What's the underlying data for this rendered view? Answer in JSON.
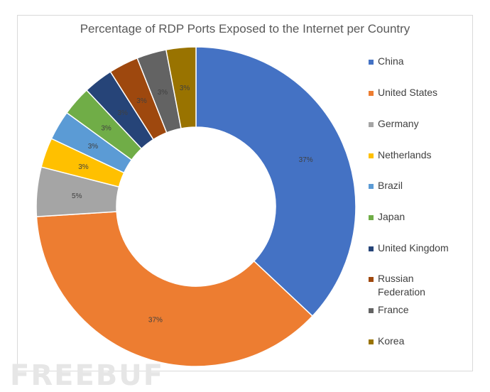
{
  "chart_data": {
    "type": "pie",
    "title": "Percentage of RDP Ports Exposed to the Internet per Country",
    "legend_position": "right",
    "categories": [
      "China",
      "United States",
      "Germany",
      "Netherlands",
      "Brazil",
      "Japan",
      "United Kingdom",
      "Russian Federation",
      "France",
      "Korea"
    ],
    "values": [
      37,
      37,
      5,
      3,
      3,
      3,
      3,
      3,
      3,
      3
    ],
    "labels": [
      "37%",
      "37%",
      "5%",
      "3%",
      "3%",
      "3%",
      "3%",
      "3%",
      "3%",
      "3%"
    ],
    "colors": [
      "#4472c4",
      "#ed7d31",
      "#a5a5a5",
      "#ffc000",
      "#5b9bd5",
      "#70ad47",
      "#264478",
      "#9e480e",
      "#636363",
      "#997300"
    ]
  },
  "watermark": "FREEBUF"
}
